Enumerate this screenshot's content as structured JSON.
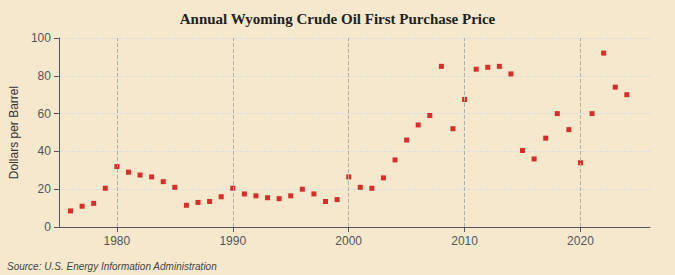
{
  "chart_data": {
    "type": "scatter",
    "title": "Annual Wyoming Crude Oil First Purchase Price",
    "ylabel": "Dollars per Barrel",
    "annotation": "Source: U.S. Energy Information Administration",
    "x": [
      1976,
      1977,
      1978,
      1979,
      1980,
      1981,
      1982,
      1983,
      1984,
      1985,
      1986,
      1987,
      1988,
      1989,
      1990,
      1991,
      1992,
      1993,
      1994,
      1995,
      1996,
      1997,
      1998,
      1999,
      2000,
      2001,
      2002,
      2003,
      2004,
      2005,
      2006,
      2007,
      2008,
      2009,
      2010,
      2011,
      2012,
      2013,
      2014,
      2015,
      2016,
      2017,
      2018,
      2019,
      2020,
      2021,
      2022,
      2023,
      2024
    ],
    "values": [
      8.5,
      11.0,
      12.5,
      20.5,
      32.0,
      29.0,
      27.5,
      26.5,
      24.0,
      21.0,
      11.5,
      13.0,
      13.5,
      16.0,
      20.5,
      17.5,
      16.5,
      15.5,
      15.0,
      16.5,
      20.0,
      17.5,
      13.5,
      14.5,
      26.5,
      21.0,
      20.5,
      26.0,
      35.5,
      46.0,
      54.0,
      59.0,
      85.0,
      52.0,
      67.5,
      83.5,
      84.5,
      85.0,
      81.0,
      40.5,
      36.0,
      47.0,
      60.0,
      51.5,
      34.0,
      60.0,
      92.0,
      74.0,
      70.0
    ],
    "color": "#cc0000",
    "marker": "square",
    "xlim": [
      1975,
      2026
    ],
    "xticks": [
      1980,
      1990,
      2000,
      2010,
      2020
    ],
    "ylim": [
      0,
      100
    ],
    "yticks": [
      0,
      20,
      40,
      60,
      80,
      100
    ],
    "grid": true
  }
}
